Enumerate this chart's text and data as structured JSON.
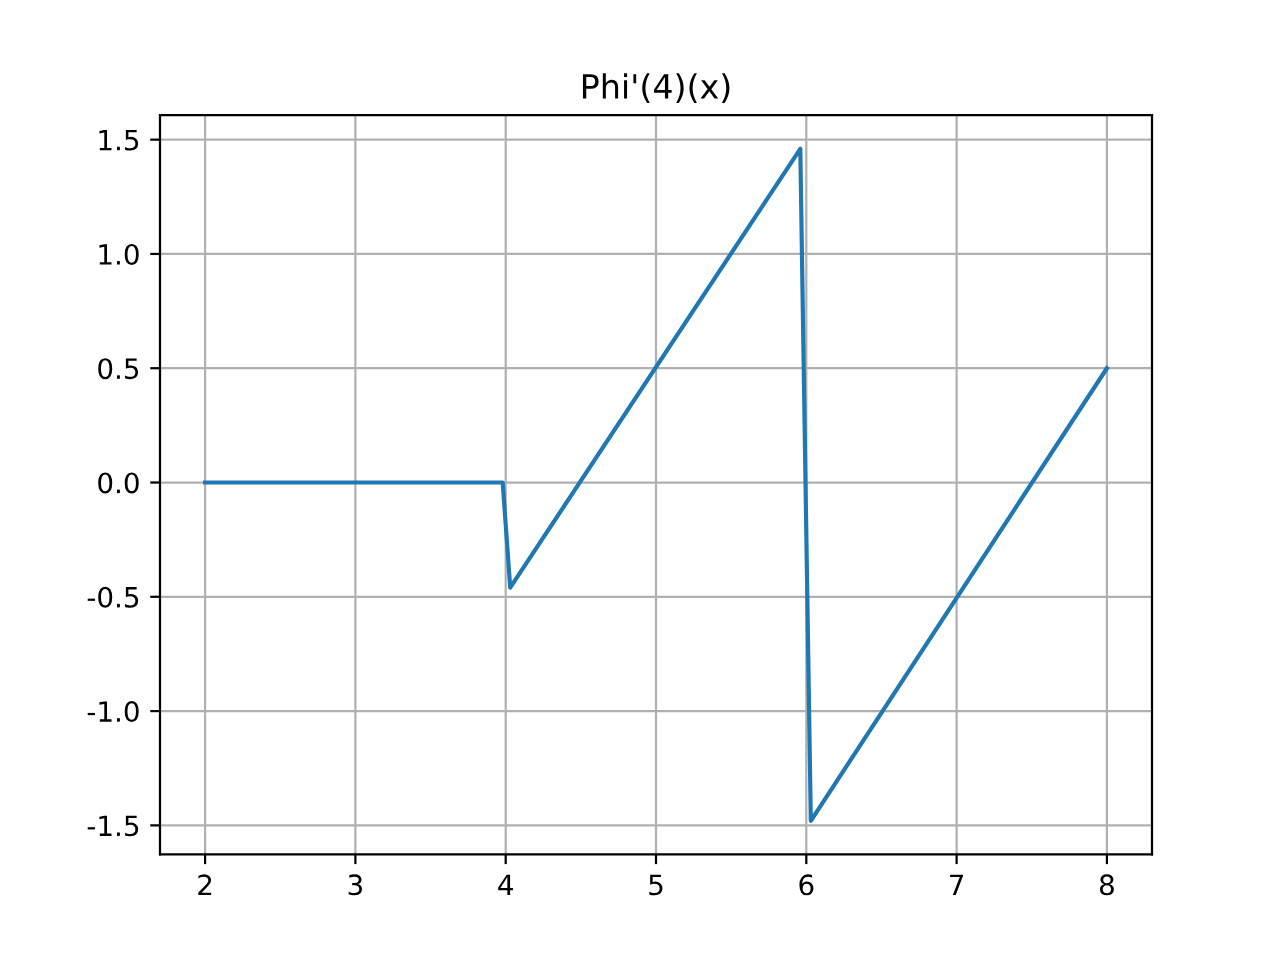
{
  "chart_data": {
    "type": "line",
    "title": "Phi'(4)(x)",
    "x": [
      2,
      3.98,
      4.03,
      5.96,
      6.03,
      8
    ],
    "series": [
      {
        "color": "#1f77b4",
        "values": [
          0,
          0,
          -0.46,
          1.46,
          -1.48,
          0.5
        ]
      }
    ],
    "xlim": [
      1.7,
      8.3
    ],
    "ylim": [
      -1.627,
      1.607
    ],
    "xticks": [
      2,
      3,
      4,
      5,
      6,
      7,
      8
    ],
    "yticks": [
      -1.5,
      {
        "value": -1,
        "label": "-1.0"
      },
      -0.5,
      {
        "value": 0,
        "label": "0.0"
      },
      0.5,
      {
        "value": 1,
        "label": "1.0"
      },
      1.5
    ],
    "grid": true,
    "marker": "none",
    "line_style": "solid"
  }
}
